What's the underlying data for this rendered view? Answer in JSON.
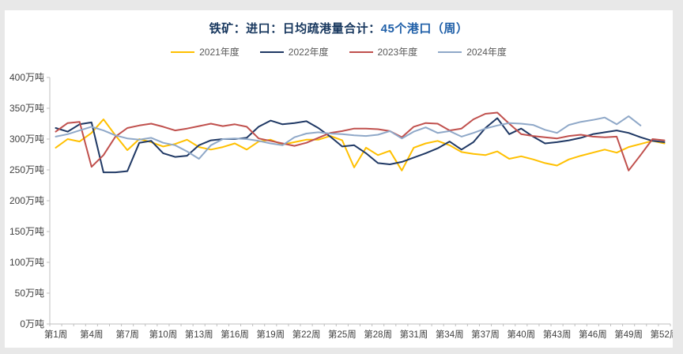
{
  "page": {
    "background": "#e8e8e8",
    "panel_background": "#ffffff",
    "axis_color": "#bfbfbf",
    "tick_label_color": "#404040"
  },
  "title": {
    "part1": "铁矿：进口：日均疏港量合计：",
    "part2": "45个港口（周）",
    "part1_color": "#17375e",
    "part2_color": "#1f5fa8"
  },
  "legend": {
    "position": "top",
    "items": [
      {
        "label": "2021年度",
        "color": "#ffc000"
      },
      {
        "label": "2022年度",
        "color": "#1f3864"
      },
      {
        "label": "2023年度",
        "color": "#c0504d"
      },
      {
        "label": "2024年度",
        "color": "#8fa8c8"
      }
    ]
  },
  "chart_data": {
    "type": "line",
    "title": "铁矿：进口：日均疏港量合计：45个港口（周）",
    "xlabel": "周",
    "ylabel": "万吨",
    "ylim": [
      0,
      400
    ],
    "grid": "off",
    "legend_position": "top",
    "x": [
      1,
      2,
      3,
      4,
      5,
      6,
      7,
      8,
      9,
      10,
      11,
      12,
      13,
      14,
      15,
      16,
      17,
      18,
      19,
      20,
      21,
      22,
      23,
      24,
      25,
      26,
      27,
      28,
      29,
      30,
      31,
      32,
      33,
      34,
      35,
      36,
      37,
      38,
      39,
      40,
      41,
      42,
      43,
      44,
      45,
      46,
      47,
      48,
      49,
      50,
      51,
      52
    ],
    "x_tick_weeks": [
      1,
      4,
      7,
      10,
      13,
      16,
      19,
      22,
      25,
      28,
      31,
      34,
      37,
      40,
      43,
      46,
      49,
      52
    ],
    "x_tick_labels": [
      "第1周",
      "第4周",
      "第7周",
      "第10周",
      "第13周",
      "第16周",
      "第19周",
      "第22周",
      "第25周",
      "第28周",
      "第31周",
      "第34周",
      "第37周",
      "第40周",
      "第43周",
      "第46周",
      "第49周",
      "第52周"
    ],
    "y_ticks": [
      0,
      50,
      100,
      150,
      200,
      250,
      300,
      350,
      400
    ],
    "y_tick_labels": [
      "0万吨",
      "50万吨",
      "100万吨",
      "150万吨",
      "200万吨",
      "250万吨",
      "300万吨",
      "350万吨",
      "400万吨"
    ],
    "series": [
      {
        "name": "2021年度",
        "color": "#ffc000",
        "values": [
          286,
          300,
          296,
          310,
          332,
          306,
          282,
          300,
          295,
          288,
          292,
          299,
          287,
          283,
          287,
          293,
          283,
          296,
          299,
          291,
          295,
          299,
          299,
          305,
          298,
          254,
          286,
          274,
          281,
          249,
          286,
          293,
          297,
          290,
          279,
          276,
          274,
          280,
          268,
          272,
          267,
          261,
          257,
          267,
          273,
          278,
          283,
          278,
          287,
          292,
          297,
          293
        ]
      },
      {
        "name": "2022年度",
        "color": "#1f3864",
        "values": [
          318,
          312,
          324,
          327,
          246,
          246,
          248,
          294,
          297,
          277,
          271,
          273,
          290,
          298,
          300,
          300,
          302,
          320,
          330,
          324,
          326,
          329,
          318,
          304,
          288,
          290,
          277,
          261,
          259,
          263,
          270,
          277,
          285,
          296,
          283,
          295,
          318,
          334,
          308,
          317,
          304,
          293,
          295,
          298,
          302,
          308,
          311,
          314,
          310,
          303,
          297,
          295
        ]
      },
      {
        "name": "2023年度",
        "color": "#c0504d",
        "values": [
          312,
          326,
          328,
          255,
          274,
          304,
          318,
          322,
          325,
          320,
          314,
          317,
          321,
          325,
          321,
          324,
          320,
          301,
          297,
          293,
          289,
          294,
          302,
          310,
          313,
          317,
          317,
          316,
          313,
          303,
          320,
          326,
          325,
          314,
          317,
          332,
          341,
          343,
          325,
          308,
          305,
          303,
          301,
          305,
          307,
          304,
          303,
          304,
          249,
          274,
          300,
          298
        ]
      },
      {
        "name": "2024年度",
        "color": "#8fa8c8",
        "values": [
          304,
          308,
          314,
          320,
          314,
          306,
          301,
          299,
          302,
          294,
          290,
          280,
          268,
          290,
          300,
          301,
          300,
          297,
          293,
          290,
          303,
          309,
          311,
          309,
          308,
          306,
          305,
          307,
          313,
          301,
          312,
          319,
          310,
          313,
          304,
          310,
          317,
          322,
          326,
          325,
          323,
          315,
          310,
          323,
          328,
          331,
          335,
          324,
          337,
          322
        ]
      }
    ]
  }
}
